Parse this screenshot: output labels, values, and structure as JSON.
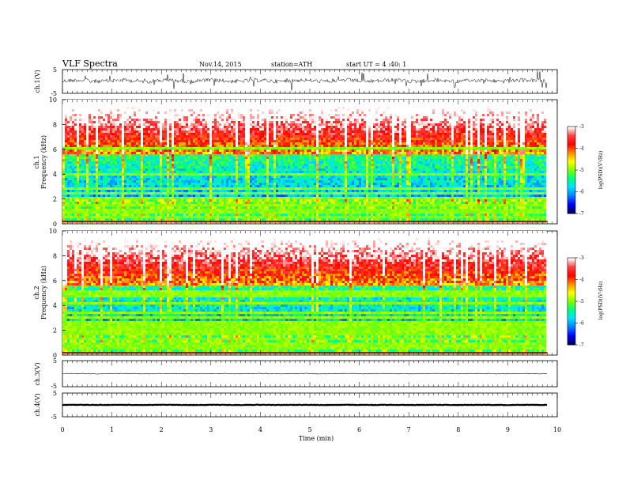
{
  "header": {
    "title": "VLF  Spectra",
    "date": "Nov.14, 2015",
    "station": "station=ATH",
    "start": "start  UT  =   4  :40: 1"
  },
  "chart_data": [
    {
      "type": "line",
      "panel": "ch1-waveform",
      "ylabel": "ch.1(V)",
      "ylim": [
        -5,
        5
      ],
      "yticks": [
        "5",
        "-5"
      ],
      "trace_level": 0.3,
      "x_range": [
        0,
        9.8
      ],
      "color": "#000000"
    },
    {
      "type": "heatmap",
      "panel": "ch1-spectrogram",
      "ylabel_top": "ch.1",
      "ylabel": "Frequency  (kHz)",
      "ylim": [
        0,
        10
      ],
      "yticks": [
        "0",
        "2",
        "4",
        "6",
        "8",
        "10"
      ],
      "xlim": [
        0,
        10
      ],
      "x_range": [
        0,
        9.8
      ],
      "colorbar": {
        "label": "log(PSD)(V²/Hz)",
        "range": [
          -7,
          -3
        ],
        "ticks": [
          "-3",
          "-4",
          "-5",
          "-6",
          "-7"
        ],
        "colors": [
          "#ffffff",
          "#ff4040",
          "#ff0000",
          "#ff8c00",
          "#ffff00",
          "#80ff00",
          "#00ff80",
          "#00e0ff",
          "#0080ff",
          "#0000ff",
          "#000060"
        ]
      }
    },
    {
      "type": "heatmap",
      "panel": "ch2-spectrogram",
      "ylabel_top": "ch.2",
      "ylabel": "Frequency  (kHz)",
      "ylim": [
        0,
        10
      ],
      "yticks": [
        "0",
        "2",
        "4",
        "6",
        "8",
        "10"
      ],
      "xlim": [
        0,
        10
      ],
      "x_range": [
        0,
        9.8
      ],
      "colorbar": {
        "label": "log(PSD)(V²/Hz)",
        "range": [
          -7,
          -3
        ],
        "ticks": [
          "-3",
          "-4",
          "-5",
          "-6",
          "-7"
        ],
        "colors": [
          "#ffffff",
          "#ff4040",
          "#ff0000",
          "#ff8c00",
          "#ffff00",
          "#80ff00",
          "#00ff80",
          "#00e0ff",
          "#0080ff",
          "#0000ff",
          "#000060"
        ]
      }
    },
    {
      "type": "line",
      "panel": "ch3-waveform",
      "ylabel": "ch.3(V)",
      "ylim": [
        -5,
        5
      ],
      "yticks": [
        "5",
        "-5"
      ],
      "trace_level": 0,
      "x_range": [
        0,
        9.8
      ],
      "color": "#000000"
    },
    {
      "type": "line",
      "panel": "ch4-waveform",
      "ylabel": "ch.4(V)",
      "ylim": [
        -5,
        5
      ],
      "yticks": [
        "5",
        "-5"
      ],
      "trace_level": 0,
      "x_range": [
        0,
        9.8
      ],
      "color": "#000000",
      "xlabel": "Time  (min)",
      "xlim": [
        0,
        10
      ],
      "xticks": [
        "0",
        "1",
        "2",
        "3",
        "4",
        "5",
        "6",
        "7",
        "8",
        "9",
        "10"
      ]
    }
  ]
}
